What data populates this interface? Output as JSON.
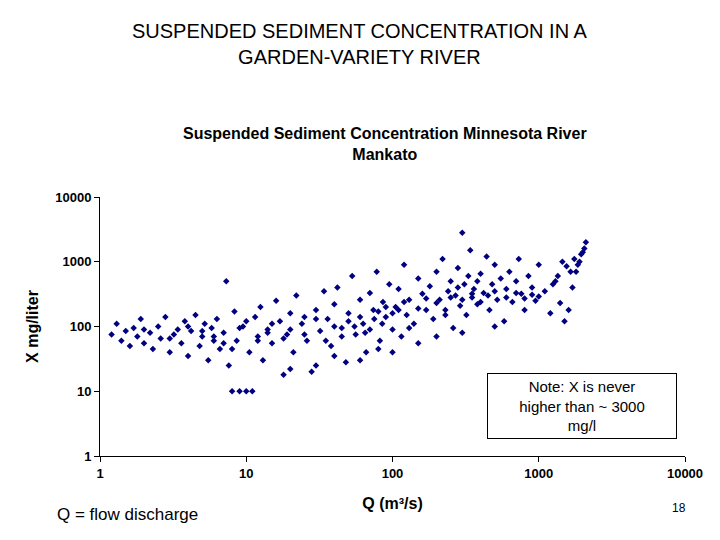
{
  "slide": {
    "title_lines": [
      "SUSPENDED SEDIMENT CONCENTRATION IN A",
      "GARDEN-VARIETY RIVER"
    ],
    "footer": "Q = flow discharge",
    "page_number": 18
  },
  "chart_data": {
    "type": "scatter",
    "title_lines": [
      "Suspended Sediment Concentration Minnesota River",
      "Mankato"
    ],
    "x_label": "Q (m³/s)",
    "y_label": "X mg/liter",
    "annotation_lines": [
      "Note: X is never",
      "higher than ~ 3000",
      "mg/l"
    ],
    "log": true,
    "grid": false,
    "color": "#000080",
    "marker": "diamond",
    "xlim": [
      1,
      10000
    ],
    "ylim": [
      1,
      10000
    ],
    "xticks": [
      1,
      10,
      100,
      1000,
      10000
    ],
    "yticks": [
      1,
      10,
      100,
      1000,
      10000
    ],
    "x": [
      1.2,
      1.3,
      1.4,
      1.5,
      1.6,
      1.7,
      1.8,
      1.9,
      2.0,
      2.2,
      2.3,
      2.5,
      2.6,
      2.8,
      3.0,
      3.2,
      3.4,
      3.6,
      3.8,
      4.0,
      4.2,
      4.5,
      4.8,
      5.0,
      5.2,
      5.5,
      5.8,
      6.0,
      6.3,
      6.6,
      7.0,
      7.3,
      7.6,
      8.0,
      8.3,
      8.6,
      9.0,
      9.5,
      10,
      10.5,
      11,
      11.5,
      12,
      12.5,
      13,
      14,
      15,
      16,
      17,
      18,
      19,
      20,
      21,
      22,
      24,
      26,
      28,
      30,
      32,
      34,
      36,
      38,
      40,
      42,
      45,
      48,
      50,
      53,
      56,
      60,
      63,
      66,
      70,
      74,
      78,
      82,
      86,
      90,
      95,
      100,
      105,
      110,
      115,
      120,
      125,
      130,
      140,
      150,
      160,
      170,
      180,
      190,
      200,
      210,
      220,
      230,
      240,
      250,
      260,
      270,
      280,
      290,
      300,
      310,
      320,
      330,
      340,
      350,
      360,
      380,
      400,
      420,
      440,
      460,
      480,
      500,
      520,
      550,
      580,
      600,
      630,
      660,
      700,
      730,
      760,
      800,
      850,
      900,
      950,
      1000,
      1100,
      1200,
      1300,
      1400,
      1500,
      1600,
      1700,
      1800,
      1900,
      2000,
      2100,
      2050,
      1950,
      1850,
      1750,
      1650,
      1550,
      1450,
      1350,
      1250,
      3,
      5,
      7,
      9,
      12,
      15,
      20,
      25,
      30,
      40,
      50,
      60,
      70,
      80,
      90,
      100,
      120,
      150,
      200,
      250,
      300,
      350,
      400,
      450,
      500,
      600,
      700,
      800,
      900,
      1000,
      20,
      30,
      40,
      60,
      80,
      100,
      150,
      200,
      300,
      500,
      2,
      4,
      6,
      8,
      10,
      14,
      18,
      25,
      35,
      45,
      55,
      65,
      75,
      85,
      110,
      130,
      170,
      230,
      280,
      380
    ],
    "values": [
      75,
      110,
      60,
      85,
      50,
      95,
      70,
      130,
      55,
      80,
      45,
      100,
      65,
      140,
      40,
      75,
      90,
      55,
      120,
      35,
      85,
      150,
      50,
      70,
      110,
      30,
      95,
      60,
      130,
      45,
      80,
      500,
      25,
      10,
      170,
      60,
      10,
      100,
      10,
      40,
      10,
      140,
      70,
      200,
      30,
      90,
      55,
      250,
      120,
      18,
      75,
      160,
      40,
      300,
      110,
      60,
      20,
      180,
      85,
      350,
      130,
      50,
      220,
      400,
      95,
      28,
      160,
      600,
      75,
      260,
      110,
      40,
      330,
      180,
      700,
      60,
      240,
      140,
      450,
      90,
      200,
      380,
      70,
      900,
      150,
      260,
      110,
      550,
      320,
      180,
      420,
      130,
      700,
      260,
      1100,
      180,
      350,
      500,
      95,
      300,
      800,
      210,
      2800,
      450,
      150,
      600,
      1500,
      280,
      380,
      220,
      650,
      330,
      1200,
      180,
      450,
      900,
      260,
      550,
      120,
      380,
      700,
      240,
      500,
      1100,
      320,
      180,
      600,
      400,
      250,
      900,
      350,
      160,
      500,
      230,
      120,
      180,
      400,
      700,
      1000,
      1400,
      2000,
      1600,
      1300,
      900,
      1100,
      700,
      850,
      1000,
      600,
      450,
      65,
      85,
      55,
      95,
      60,
      110,
      90,
      75,
      130,
      100,
      120,
      140,
      90,
      170,
      200,
      160,
      240,
      190,
      230,
      280,
      260,
      320,
      240,
      300,
      350,
      280,
      330,
      270,
      310,
      290,
      22,
      25,
      35,
      30,
      45,
      40,
      55,
      70,
      80,
      100,
      90,
      100,
      70,
      45,
      120,
      80,
      65,
      140,
      60,
      70,
      100,
      80,
      130,
      110,
      180,
      95,
      270,
      150,
      400,
      500
    ]
  }
}
